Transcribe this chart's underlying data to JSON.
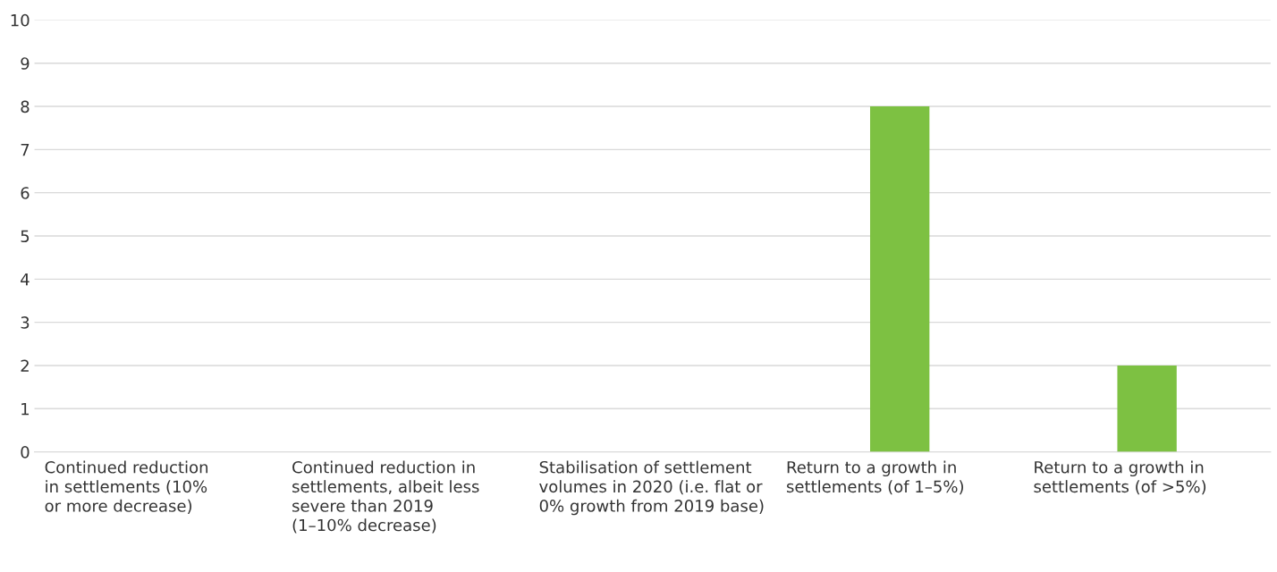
{
  "chart_data": {
    "type": "bar",
    "categories": [
      "Continued reduction\nin settlements (10%\nor more decrease)",
      "Continued reduction in\nsettlements, albeit less\nsevere than 2019\n(1–10% decrease)",
      "Stabilisation of settlement\nvolumes in 2020 (i.e. flat or\n0% growth from 2019 base)",
      "Return to a growth in\nsettlements (of 1–5%)",
      "Return to a growth in\nsettlements (of >5%)"
    ],
    "values": [
      0,
      0,
      0,
      8,
      2
    ],
    "color": "#7dc142",
    "ylim": [
      0,
      10
    ],
    "yticks": [
      0,
      1,
      2,
      3,
      4,
      5,
      6,
      7,
      8,
      9,
      10
    ],
    "grid": "y",
    "legend": false
  }
}
